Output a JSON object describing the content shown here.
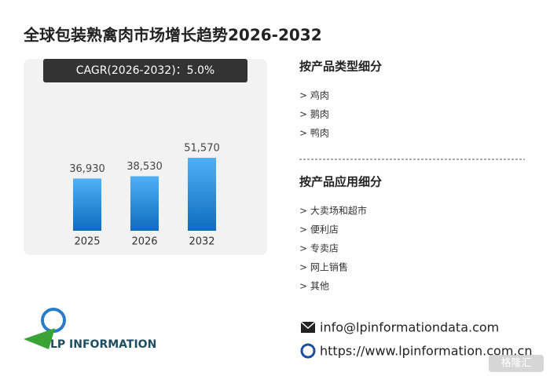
{
  "title": "全球包装熟禽肉市场增长趋势2026-2032",
  "cagr": "CAGR(2026-2032)：5.0%",
  "chart_data": {
    "type": "bar",
    "categories": [
      "2025",
      "2026",
      "2032"
    ],
    "values": [
      36930,
      38530,
      51570
    ],
    "value_labels": [
      "36,930",
      "38,530",
      "51,570"
    ],
    "color": "#1f7fd6"
  },
  "segments": [
    {
      "heading": "按产品类型细分",
      "items": [
        "> 鸡肉",
        "> 鹅肉",
        "> 鸭肉"
      ]
    },
    {
      "heading": "按产品应用细分",
      "items": [
        "> 大卖场和超市",
        "> 便利店",
        "> 专卖店",
        "> 网上销售",
        "> 其他"
      ]
    }
  ],
  "contact": {
    "email": "info@lpinformationdata.com",
    "website": "https://www.lpinformation.com.cn"
  },
  "logo": "LP INFORMATION",
  "source_badge": "格隆汇"
}
